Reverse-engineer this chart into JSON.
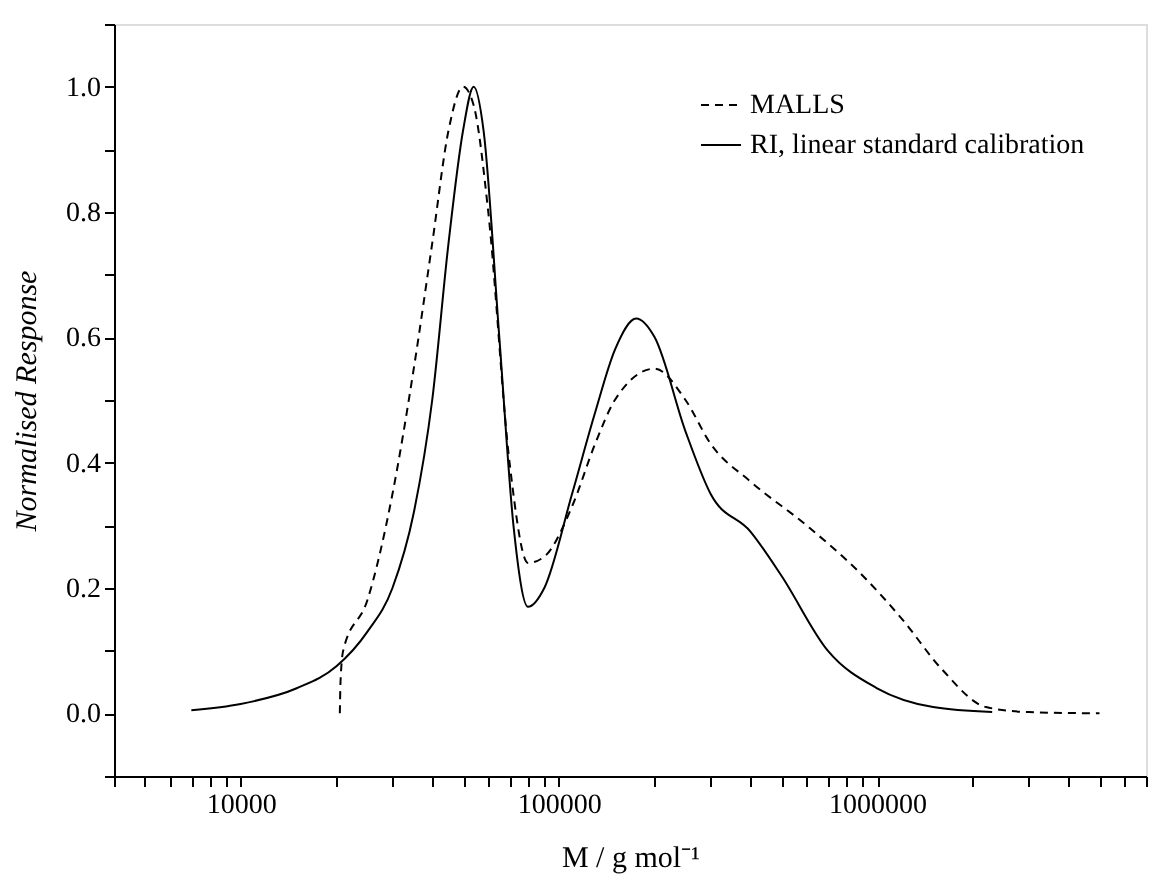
{
  "chart_data": {
    "type": "line",
    "xlabel": "M / g mol⁻¹",
    "ylabel": "Normalised Response",
    "log": "x",
    "xlim": [
      4000,
      7000000
    ],
    "ylim": [
      -0.1,
      1.1
    ],
    "xticks": [
      {
        "value": 4000,
        "label": null
      },
      {
        "value": 5000,
        "label": null
      },
      {
        "value": 6000,
        "label": null
      },
      {
        "value": 7000,
        "label": null
      },
      {
        "value": 8000,
        "label": null
      },
      {
        "value": 9000,
        "label": null
      },
      10000,
      {
        "value": 20000,
        "label": null
      },
      {
        "value": 30000,
        "label": null
      },
      {
        "value": 40000,
        "label": null
      },
      {
        "value": 50000,
        "label": null
      },
      {
        "value": 60000,
        "label": null
      },
      {
        "value": 70000,
        "label": null
      },
      {
        "value": 80000,
        "label": null
      },
      {
        "value": 90000,
        "label": null
      },
      100000,
      {
        "value": 200000,
        "label": null
      },
      {
        "value": 300000,
        "label": null
      },
      {
        "value": 400000,
        "label": null
      },
      {
        "value": 500000,
        "label": null
      },
      {
        "value": 600000,
        "label": null
      },
      {
        "value": 700000,
        "label": null
      },
      {
        "value": 800000,
        "label": null
      },
      {
        "value": 900000,
        "label": null
      },
      1000000,
      {
        "value": 2000000,
        "label": null
      },
      {
        "value": 3000000,
        "label": null
      },
      {
        "value": 4000000,
        "label": null
      },
      {
        "value": 5000000,
        "label": null
      },
      {
        "value": 6000000,
        "label": null
      },
      {
        "value": 7000000,
        "label": null
      }
    ],
    "yticks": [
      {
        "value": -0.1,
        "label": null
      },
      {
        "value": 0,
        "label": "0.0"
      },
      {
        "value": 0.1,
        "label": null
      },
      {
        "value": 0.2,
        "label": "0.2"
      },
      {
        "value": 0.3,
        "label": null
      },
      {
        "value": 0.4,
        "label": "0.4"
      },
      {
        "value": 0.5,
        "label": null
      },
      {
        "value": 0.6,
        "label": "0.6"
      },
      {
        "value": 0.7,
        "label": null
      },
      {
        "value": 0.8,
        "label": "0.8"
      },
      {
        "value": 0.9,
        "label": null
      },
      {
        "value": 1.0,
        "label": "1.0"
      },
      {
        "value": 1.1,
        "label": null
      }
    ],
    "grid": false,
    "legend": "top right",
    "series": [
      {
        "name": "MALLS",
        "color": "#000000",
        "line_style": "dashed",
        "x": [
          20500,
          20600,
          21000,
          25000,
          30000,
          35000,
          40000,
          45000,
          50000,
          54000,
          60000,
          70000,
          80000,
          90000,
          110000,
          130000,
          150000,
          200000,
          250000,
          300000,
          400000,
          600000,
          900000,
          1200000,
          1600000,
          2200000,
          3000000,
          5000000
        ],
        "values": [
          0.0,
          0.05,
          0.1,
          0.18,
          0.35,
          0.55,
          0.75,
          0.93,
          1.0,
          0.97,
          0.8,
          0.4,
          0.24,
          0.25,
          0.33,
          0.43,
          0.5,
          0.55,
          0.5,
          0.43,
          0.37,
          0.3,
          0.22,
          0.15,
          0.07,
          0.01,
          0.002,
          0.0
        ]
      },
      {
        "name": "RI, linear standard calibration",
        "color": "#000000",
        "line_style": "solid",
        "x": [
          7000,
          10000,
          15000,
          20000,
          25000,
          30000,
          35000,
          40000,
          45000,
          50000,
          54000,
          58000,
          65000,
          72000,
          80000,
          90000,
          110000,
          130000,
          150000,
          175000,
          200000,
          250000,
          300000,
          400000,
          500000,
          700000,
          1000000,
          1500000,
          2300000
        ],
        "values": [
          0.005,
          0.015,
          0.04,
          0.075,
          0.13,
          0.2,
          0.32,
          0.5,
          0.75,
          0.93,
          1.0,
          0.93,
          0.6,
          0.3,
          0.17,
          0.2,
          0.35,
          0.48,
          0.58,
          0.63,
          0.6,
          0.45,
          0.35,
          0.29,
          0.22,
          0.1,
          0.04,
          0.01,
          0.002
        ]
      }
    ]
  }
}
